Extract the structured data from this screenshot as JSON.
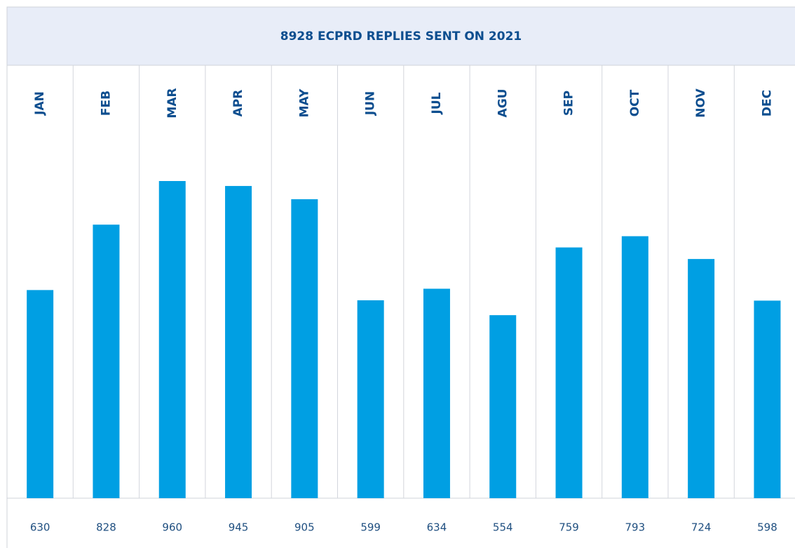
{
  "chart_data": {
    "type": "bar",
    "title": "8928 ECPRD REPLIES SENT ON 2021",
    "categories": [
      "JAN",
      "FEB",
      "MAR",
      "APR",
      "MAY",
      "JUN",
      "JUL",
      "AGU",
      "SEP",
      "OCT",
      "NOV",
      "DEC"
    ],
    "values": [
      630,
      828,
      960,
      945,
      905,
      599,
      634,
      554,
      759,
      793,
      724,
      598
    ],
    "color": "#009fe3"
  }
}
